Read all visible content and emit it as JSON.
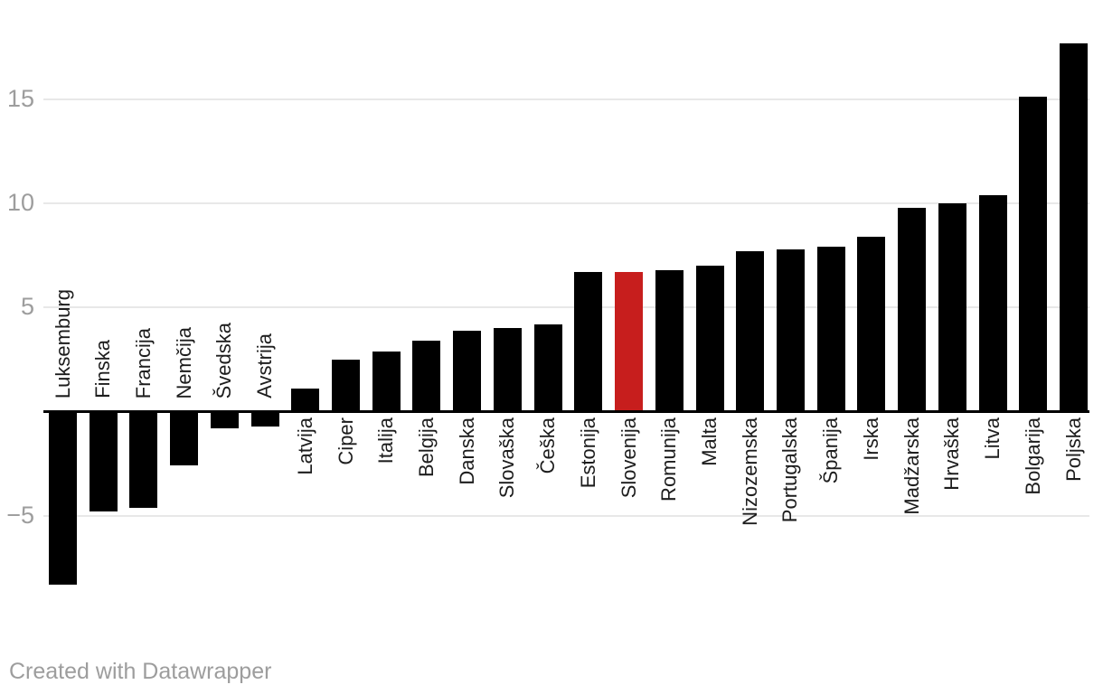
{
  "chart_data": {
    "type": "bar",
    "title": "",
    "categories": [
      "Luksemburg",
      "Finska",
      "Francija",
      "Nemčija",
      "Švedska",
      "Avstrija",
      "Latvija",
      "Ciper",
      "Italija",
      "Belgija",
      "Danska",
      "Slovaška",
      "Češka",
      "Estonija",
      "Slovenija",
      "Romunija",
      "Malta",
      "Nizozemska",
      "Portugalska",
      "Španija",
      "Irska",
      "Madžarska",
      "Hrvaška",
      "Litva",
      "Bolgarija",
      "Poljska"
    ],
    "values": [
      -8.3,
      -4.8,
      -4.6,
      -2.6,
      -0.8,
      -0.7,
      1.1,
      2.5,
      2.9,
      3.4,
      3.9,
      4.0,
      4.2,
      6.7,
      6.7,
      6.8,
      7.0,
      7.7,
      7.8,
      7.9,
      8.4,
      9.8,
      10.0,
      10.4,
      15.1,
      17.7
    ],
    "highlight_category": "Slovenija",
    "sort_order": "ascending",
    "y_axis": {
      "tick_values": [
        15,
        10,
        5,
        -5
      ],
      "tick_labels": [
        "15",
        "10",
        "5",
        "−5"
      ],
      "range": [
        -9,
        19
      ],
      "gridlines": true,
      "zero_line": true
    },
    "x_axis": {
      "label_rotation": -90,
      "negative_labels_above_axis": true
    },
    "legend": "none",
    "bar_color": "#000000",
    "highlight_color": "#c71e1d"
  },
  "colors": {
    "bar": "#000000",
    "highlight": "#c71e1d",
    "gridline": "#e8e8e8",
    "axis_line": "#000000",
    "tick_label": "#9d9d9d",
    "category_label": "#1d1d1d",
    "footer_text": "#9d9d9d",
    "background": "#ffffff"
  },
  "footer": {
    "credit": "Created with Datawrapper"
  }
}
